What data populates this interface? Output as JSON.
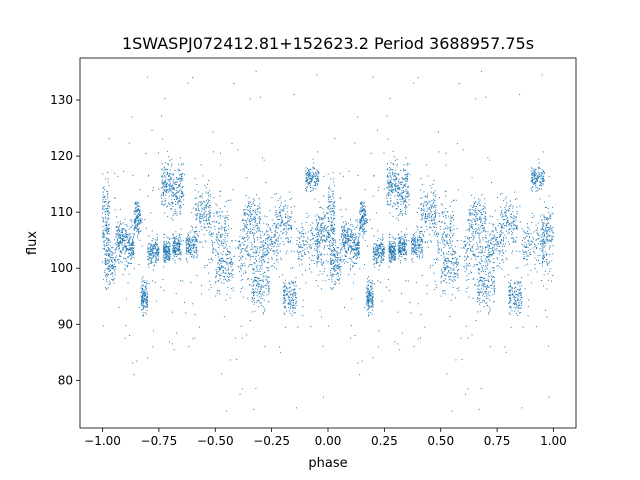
{
  "chart_data": {
    "type": "scatter",
    "title": "1SWASPJ072412.81+152623.2 Period 3688957.75s",
    "xlabel": "phase",
    "ylabel": "flux",
    "xlim": [
      -1.1,
      1.1
    ],
    "ylim": [
      71.5,
      137.5
    ],
    "xticks": [
      -1.0,
      -0.75,
      -0.5,
      -0.25,
      0.0,
      0.25,
      0.5,
      0.75,
      1.0
    ],
    "xtick_labels": [
      "−1.00",
      "−0.75",
      "−0.50",
      "−0.25",
      "0.00",
      "0.25",
      "0.50",
      "0.75",
      "1.00"
    ],
    "yticks": [
      80,
      90,
      100,
      110,
      120,
      130
    ],
    "ytick_labels": [
      "80",
      "90",
      "100",
      "110",
      "120",
      "130"
    ],
    "grid": false,
    "marker_color": "#1f77b4",
    "phase_repeat": true,
    "segments": [
      {
        "x": [
          0.0,
          0.03
        ],
        "y": [
          109,
          6
        ]
      },
      {
        "x": [
          0.01,
          0.06
        ],
        "y": [
          101,
          4
        ]
      },
      {
        "x": [
          0.06,
          0.1
        ],
        "y": [
          105,
          3
        ]
      },
      {
        "x": [
          0.1,
          0.14
        ],
        "y": [
          104,
          3
        ]
      },
      {
        "x": [
          0.14,
          0.17
        ],
        "y": [
          109,
          3
        ]
      },
      {
        "x": [
          0.17,
          0.2
        ],
        "y": [
          95,
          3
        ]
      },
      {
        "x": [
          0.2,
          0.25
        ],
        "y": [
          103,
          2
        ]
      },
      {
        "x": [
          0.26,
          0.31
        ],
        "y": [
          115,
          4
        ]
      },
      {
        "x": [
          0.27,
          0.3
        ],
        "y": [
          103,
          2
        ]
      },
      {
        "x": [
          0.31,
          0.36
        ],
        "y": [
          114,
          4
        ]
      },
      {
        "x": [
          0.31,
          0.35
        ],
        "y": [
          104,
          2
        ]
      },
      {
        "x": [
          0.37,
          0.42
        ],
        "y": [
          104,
          2
        ]
      },
      {
        "x": [
          0.41,
          0.48
        ],
        "y": [
          110,
          4
        ]
      },
      {
        "x": [
          0.47,
          0.56
        ],
        "y": [
          106,
          5
        ]
      },
      {
        "x": [
          0.5,
          0.58
        ],
        "y": [
          100,
          4
        ]
      },
      {
        "x": [
          0.6,
          0.7
        ],
        "y": [
          102,
          5
        ]
      },
      {
        "x": [
          0.62,
          0.7
        ],
        "y": [
          109,
          3
        ]
      },
      {
        "x": [
          0.66,
          0.74
        ],
        "y": [
          97,
          4
        ]
      },
      {
        "x": [
          0.7,
          0.78
        ],
        "y": [
          104,
          4
        ]
      },
      {
        "x": [
          0.76,
          0.84
        ],
        "y": [
          108,
          4
        ]
      },
      {
        "x": [
          0.8,
          0.86
        ],
        "y": [
          95,
          3
        ]
      },
      {
        "x": [
          0.86,
          0.96
        ],
        "y": [
          104,
          4
        ]
      },
      {
        "x": [
          0.9,
          0.96
        ],
        "y": [
          116,
          2
        ]
      },
      {
        "x": [
          0.95,
          1.0
        ],
        "y": [
          106,
          5
        ]
      }
    ],
    "outliers": [
      {
        "x": 0.61,
        "y": 77.5
      },
      {
        "x": 0.62,
        "y": 78.5
      },
      {
        "x": 0.55,
        "y": 74.5
      },
      {
        "x": 0.67,
        "y": 74.8
      },
      {
        "x": 0.86,
        "y": 75.1
      },
      {
        "x": 0.98,
        "y": 77.0
      },
      {
        "x": 0.4,
        "y": 134.0
      },
      {
        "x": 0.38,
        "y": 133.0
      },
      {
        "x": 0.95,
        "y": 134.5
      },
      {
        "x": 0.85,
        "y": 131.0
      },
      {
        "x": 0.7,
        "y": 130.5
      },
      {
        "x": 0.12,
        "y": 88.0
      },
      {
        "x": 0.2,
        "y": 84.0
      },
      {
        "x": 0.14,
        "y": 81.0
      },
      {
        "x": 0.72,
        "y": 86.0
      },
      {
        "x": 0.79,
        "y": 85.0
      },
      {
        "x": 0.31,
        "y": 86.5
      }
    ]
  }
}
